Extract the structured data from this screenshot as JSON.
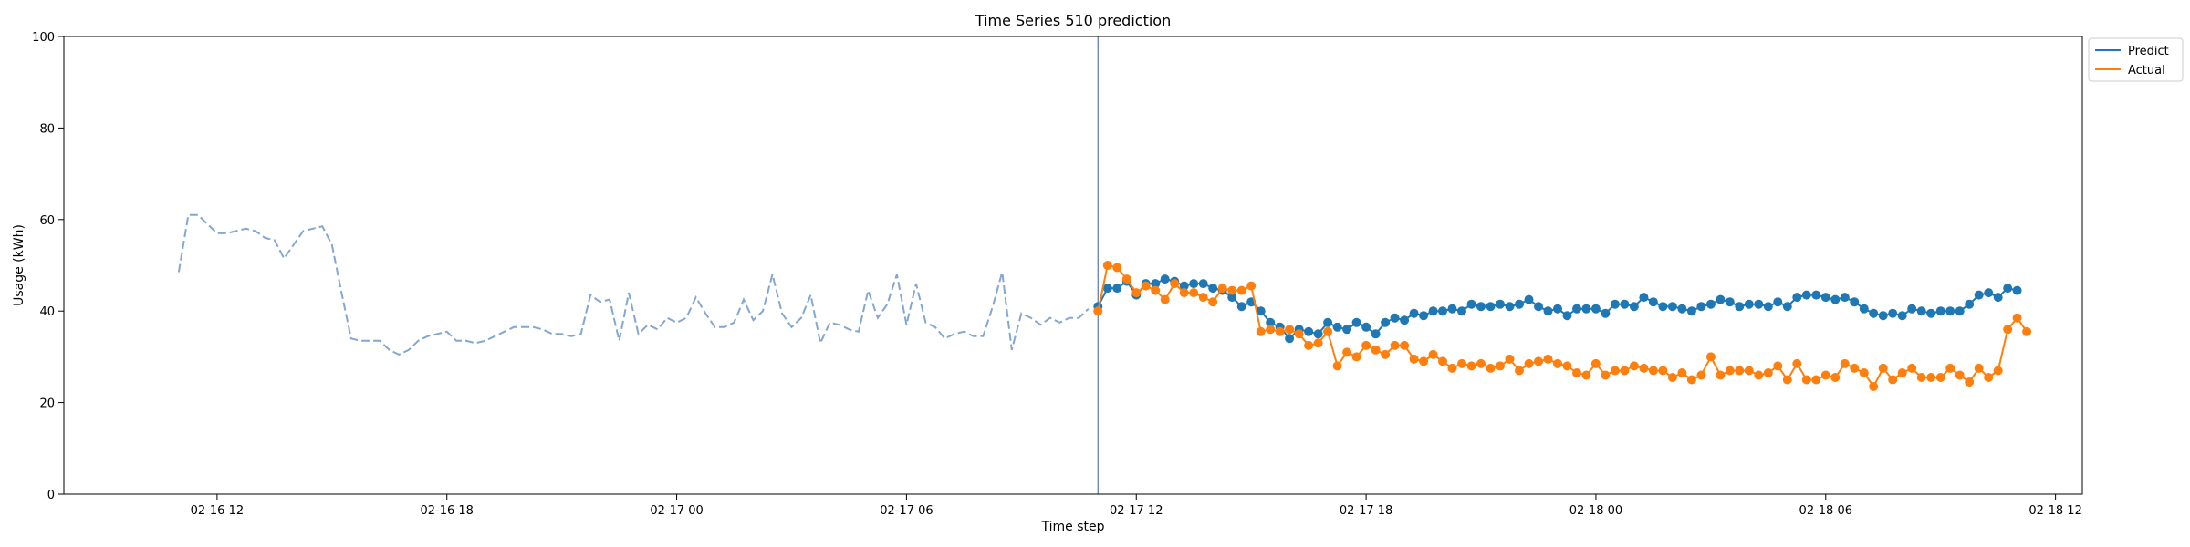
{
  "chart_data": {
    "type": "line",
    "title": "Time Series 510 prediction",
    "xlabel": "Time step",
    "ylabel": "Usage (kWh)",
    "ylim": [
      0,
      100
    ],
    "yticks": [
      0,
      20,
      40,
      60,
      80,
      100
    ],
    "xlim_hours": [
      -4.0,
      48.7
    ],
    "xticks": [
      {
        "label": "02-16 12",
        "hour": 0
      },
      {
        "label": "02-16 18",
        "hour": 6
      },
      {
        "label": "02-17 00",
        "hour": 12
      },
      {
        "label": "02-17 06",
        "hour": 18
      },
      {
        "label": "02-17 12",
        "hour": 24
      },
      {
        "label": "02-17 18",
        "hour": 30
      },
      {
        "label": "02-18 00",
        "hour": 36
      },
      {
        "label": "02-18 06",
        "hour": 42
      },
      {
        "label": "02-18 12",
        "hour": 48
      }
    ],
    "history": {
      "start_hour": -1.0,
      "step_hours": 0.25,
      "values": [
        48.5,
        61,
        61,
        59,
        57,
        57,
        57.5,
        58,
        57.5,
        56,
        55.5,
        51.5,
        54.5,
        57.5,
        58,
        58.5,
        54.5,
        44,
        34,
        33.5,
        33.5,
        33.5,
        31.5,
        30.5,
        31.5,
        33.5,
        34.5,
        35,
        35.5,
        33.5,
        33.5,
        33,
        33.5,
        34.5,
        35.5,
        36.5,
        36.5,
        36.5,
        36,
        35,
        35,
        34.5,
        35,
        43.5,
        42,
        42.5,
        33.5,
        44,
        35,
        37,
        36,
        38.5,
        37.5,
        38.5,
        43,
        39.5,
        36.5,
        36.5,
        37.5,
        42.5,
        38,
        40,
        48,
        39.5,
        36.5,
        38.5,
        43.5,
        33,
        37.5,
        37,
        36,
        35.5,
        44.5,
        38.5,
        41.5,
        48,
        37,
        46,
        37.5,
        36.5,
        34,
        35,
        35.5,
        34.5,
        34.5,
        41,
        48.5,
        31.5,
        39.5,
        38.5,
        37,
        38.5,
        37.5,
        38.5,
        38.5,
        40.5
      ]
    },
    "forecast_start_hour": 23,
    "forecast_step_hours": 0.25,
    "series": [
      {
        "name": "Predict",
        "color": "#1f77b4",
        "values": [
          41,
          45,
          45,
          46.5,
          43.5,
          46,
          46,
          47,
          46.5,
          45.5,
          46,
          46,
          45,
          44.5,
          43,
          41,
          42,
          40,
          37.5,
          36.5,
          34,
          36,
          35.5,
          35,
          37.5,
          36.5,
          36,
          37.5,
          36.5,
          35,
          37.5,
          38.5,
          38,
          39.5,
          39,
          40,
          40,
          40.5,
          40,
          41.5,
          41,
          41,
          41.5,
          41,
          41.5,
          42.5,
          41,
          40,
          40.5,
          39,
          40.5,
          40.5,
          40.5,
          39.5,
          41.5,
          41.5,
          41,
          43,
          42,
          41,
          41,
          40.5,
          40,
          41,
          41.5,
          42.5,
          42,
          41,
          41.5,
          41.5,
          41,
          42,
          41,
          43,
          43.5,
          43.5,
          43,
          42.5,
          43,
          42,
          40.5,
          39.5,
          39,
          39.5,
          39,
          40.5,
          40,
          39.5,
          40,
          40,
          40,
          41.5,
          43.5,
          44,
          43,
          45,
          44.5
        ]
      },
      {
        "name": "Actual",
        "color": "#ff7f0e",
        "values": [
          40,
          50,
          49.5,
          47,
          44,
          45.5,
          44.5,
          42.5,
          46,
          44,
          44,
          43,
          42,
          45,
          44.5,
          44.5,
          45.5,
          35.5,
          36,
          35.5,
          36,
          35,
          32.5,
          33,
          35.5,
          28,
          31,
          30,
          32.5,
          31.5,
          30.5,
          32.5,
          32.5,
          29.5,
          29,
          30.5,
          29,
          27.5,
          28.5,
          28,
          28.5,
          27.5,
          28,
          29.5,
          27,
          28.5,
          29,
          29.5,
          28.5,
          28,
          26.5,
          26,
          28.5,
          26,
          27,
          27,
          28,
          27.5,
          27,
          27,
          25.5,
          26.5,
          25,
          26,
          30,
          26,
          27,
          27,
          27,
          26,
          26.5,
          28,
          25,
          28.5,
          25,
          25,
          26,
          25.5,
          28.5,
          27.5,
          26.5,
          23.5,
          27.5,
          25,
          26.5,
          27.5,
          25.5,
          25.5,
          25.5,
          27.5,
          26,
          24.5,
          27.5,
          25.5,
          27,
          36,
          38.5,
          35.5
        ]
      }
    ],
    "legend_position": "upper right, outside plot",
    "grid": false,
    "history_color": "#5b8ac1",
    "divider_color": "#3b5fa8"
  }
}
